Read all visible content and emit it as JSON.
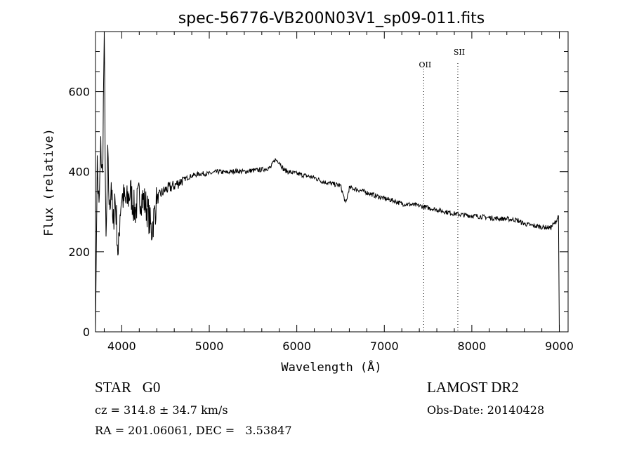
{
  "chart_data": {
    "type": "line",
    "title": "spec-56776-VB200N03V1_sp09-011.fits",
    "xlabel": "Wavelength (Å)",
    "ylabel": "Flux (relative)",
    "xlim": [
      3700,
      9100
    ],
    "ylim": [
      0,
      750
    ],
    "x_ticks": [
      4000,
      5000,
      6000,
      7000,
      8000,
      9000
    ],
    "y_ticks": [
      0,
      200,
      400,
      600
    ],
    "grid": false,
    "series": [
      {
        "x": [
          3700,
          3720,
          3740,
          3760,
          3780,
          3800,
          3820,
          3840,
          3860,
          3880,
          3900,
          3920,
          3940,
          3960,
          3980,
          4000,
          4050,
          4100,
          4150,
          4200,
          4250,
          4300,
          4340,
          4400,
          4450,
          4500,
          4600,
          4700,
          4800,
          4900,
          5000,
          5100,
          5200,
          5300,
          5400,
          5500,
          5600,
          5700,
          5750,
          5800,
          5850,
          5900,
          6000,
          6100,
          6200,
          6300,
          6400,
          6500,
          6560,
          6600,
          6700,
          6800,
          6900,
          7000,
          7100,
          7200,
          7300,
          7400,
          7500,
          7600,
          7700,
          7800,
          7900,
          8000,
          8100,
          8200,
          8300,
          8400,
          8500,
          8600,
          8700,
          8800,
          8900,
          8960,
          8990,
          9000
        ],
        "y": [
          0,
          420,
          300,
          460,
          380,
          750,
          200,
          430,
          300,
          380,
          250,
          340,
          280,
          180,
          300,
          340,
          320,
          350,
          300,
          340,
          330,
          300,
          250,
          330,
          345,
          355,
          365,
          380,
          390,
          395,
          395,
          400,
          398,
          402,
          400,
          403,
          405,
          410,
          430,
          425,
          405,
          400,
          395,
          390,
          385,
          375,
          370,
          365,
          320,
          360,
          355,
          348,
          340,
          333,
          328,
          320,
          318,
          315,
          310,
          305,
          300,
          295,
          292,
          290,
          288,
          285,
          283,
          282,
          280,
          270,
          265,
          262,
          260,
          275,
          290,
          0
        ]
      }
    ],
    "annotations": [
      {
        "label": "OII",
        "x": 7450
      },
      {
        "label": "SII",
        "x": 7840
      }
    ]
  },
  "info": {
    "class": "STAR   G0",
    "survey": "LAMOST DR2",
    "cz": "cz = 314.8 ± 34.7 km/s",
    "obs_date": "Obs-Date: 20140428",
    "radec": "RA = 201.06061, DEC =   3.53847"
  }
}
